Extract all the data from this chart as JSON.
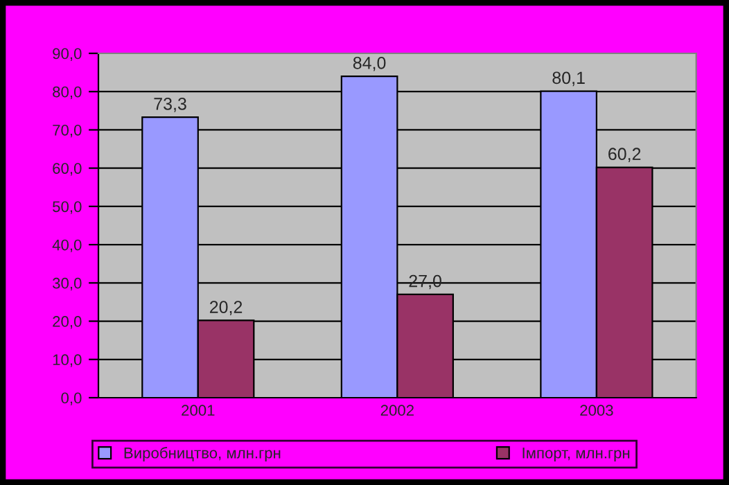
{
  "chart_data": {
    "type": "bar",
    "categories": [
      "2001",
      "2002",
      "2003"
    ],
    "series": [
      {
        "name": "Виробництво, млн.грн",
        "color": "#9999ff",
        "values": [
          73.3,
          84.0,
          80.1
        ],
        "value_labels": [
          "73,3",
          "84,0",
          "80,1"
        ]
      },
      {
        "name": "Імпорт, млн.грн",
        "color": "#993366",
        "values": [
          20.2,
          27.0,
          60.2
        ],
        "value_labels": [
          "20,2",
          "27,0",
          "60,2"
        ]
      }
    ],
    "ylim": [
      0,
      90
    ],
    "yticks": [
      {
        "value": 0,
        "label": "0,0"
      },
      {
        "value": 10,
        "label": "10,0"
      },
      {
        "value": 20,
        "label": "20,0"
      },
      {
        "value": 30,
        "label": "30,0"
      },
      {
        "value": 40,
        "label": "40,0"
      },
      {
        "value": 50,
        "label": "50,0"
      },
      {
        "value": 60,
        "label": "60,0"
      },
      {
        "value": 70,
        "label": "70,0"
      },
      {
        "value": 80,
        "label": "80,0"
      },
      {
        "value": 90,
        "label": "90,0"
      }
    ],
    "grid": "y",
    "legend": "bottom"
  }
}
